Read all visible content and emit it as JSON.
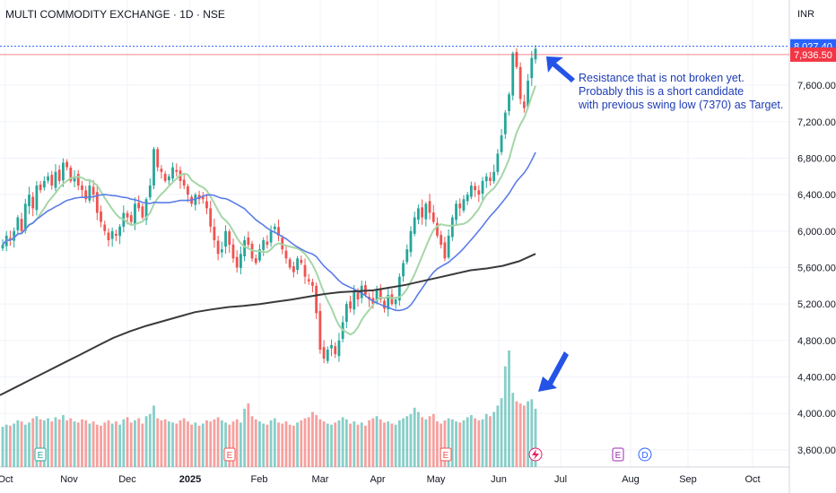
{
  "chart_data": {
    "type": "candlestick",
    "title": "MULTI COMMODITY EXCHANGE · 1D · NSE",
    "currency_label": "INR",
    "y_ticks": [
      3600,
      4000,
      4400,
      4800,
      5200,
      5600,
      6000,
      6400,
      6800,
      7200,
      7600
    ],
    "y_tick_labels": [
      "3,600.00",
      "4,000.00",
      "4,400.00",
      "4,800.00",
      "5,200.00",
      "5,600.00",
      "6,000.00",
      "6,400.00",
      "6,800.00",
      "7,200.00",
      "7,600.00"
    ],
    "ylim": [
      3520,
      8260
    ],
    "x_tick_labels": [
      "Oct",
      "Nov",
      "Dec",
      "2025",
      "Feb",
      "Mar",
      "Apr",
      "May",
      "Jun",
      "Jul",
      "Aug",
      "Sep",
      "Oct"
    ],
    "price_labels": [
      {
        "value": 8027.4,
        "text": "8,027.40",
        "color": "#2962ff"
      },
      {
        "value": 7936.5,
        "text": "7,936.50",
        "color": "#f23645"
      }
    ],
    "candles_close": [
      5850,
      5950,
      5900,
      6000,
      6150,
      6000,
      6300,
      6400,
      6250,
      6500,
      6450,
      6550,
      6600,
      6500,
      6650,
      6550,
      6750,
      6700,
      6550,
      6600,
      6500,
      6450,
      6350,
      6500,
      6400,
      6200,
      6100,
      6000,
      5900,
      6000,
      5950,
      6050,
      6200,
      6150,
      6100,
      6300,
      6250,
      6150,
      6350,
      6500,
      6900,
      6700,
      6650,
      6550,
      6600,
      6700,
      6650,
      6550,
      6500,
      6400,
      6300,
      6400,
      6350,
      6350,
      6250,
      6050,
      5900,
      5750,
      5800,
      6000,
      5850,
      5700,
      5600,
      5750,
      5900,
      5850,
      5700,
      5650,
      5800,
      5900,
      5850,
      6000,
      6050,
      5950,
      5800,
      5700,
      5600,
      5550,
      5700,
      5650,
      5500,
      5450,
      5400,
      5100,
      4700,
      4600,
      4700,
      4750,
      4650,
      4800,
      5000,
      5200,
      5150,
      5350,
      5250,
      5400,
      5300,
      5250,
      5200,
      5350,
      5250,
      5150,
      5300,
      5200,
      5250,
      5500,
      5650,
      5800,
      6000,
      6150,
      6250,
      6150,
      6300,
      6200,
      6100,
      5950,
      5850,
      5700,
      5950,
      6150,
      6300,
      6250,
      6350,
      6400,
      6500,
      6450,
      6400,
      6550,
      6600,
      6550,
      6650,
      6850,
      7050,
      7300,
      7500,
      7950,
      7800,
      7450,
      7350,
      7650,
      7900,
      8000
    ],
    "volume": [
      38,
      40,
      39,
      41,
      44,
      43,
      40,
      42,
      46,
      48,
      45,
      44,
      46,
      43,
      47,
      45,
      49,
      44,
      46,
      43,
      42,
      45,
      44,
      41,
      43,
      40,
      39,
      42,
      44,
      41,
      43,
      40,
      45,
      47,
      42,
      44,
      46,
      41,
      48,
      50,
      58,
      46,
      44,
      45,
      43,
      42,
      41,
      44,
      46,
      43,
      40,
      42,
      39,
      41,
      44,
      43,
      45,
      47,
      44,
      42,
      40,
      43,
      45,
      42,
      55,
      60,
      48,
      45,
      43,
      41,
      40,
      44,
      46,
      42,
      41,
      43,
      40,
      39,
      42,
      44,
      46,
      47,
      52,
      49,
      45,
      43,
      41,
      40,
      42,
      44,
      47,
      45,
      41,
      43,
      40,
      42,
      39,
      44,
      46,
      48,
      45,
      42,
      43,
      41,
      40,
      44,
      46,
      48,
      50,
      56,
      52,
      47,
      45,
      48,
      50,
      43,
      41,
      44,
      46,
      45,
      43,
      42,
      44,
      47,
      49,
      46,
      44,
      45,
      50,
      48,
      52,
      58,
      65,
      95,
      110,
      70,
      62,
      60,
      58,
      62,
      64,
      55
    ],
    "series": [
      {
        "name": "",
        "color": "#a5d6a7",
        "period": 20
      },
      {
        "name": "",
        "color": "#5b7ce8",
        "period": 50
      },
      {
        "name": "",
        "color": "#3a3a3a",
        "period": 200
      }
    ],
    "ma200": [
      4200,
      4290,
      4380,
      4470,
      4560,
      4650,
      4740,
      4830,
      4900,
      4960,
      5010,
      5060,
      5110,
      5140,
      5165,
      5180,
      5200,
      5225,
      5250,
      5280,
      5310,
      5330,
      5340,
      5350,
      5380,
      5410,
      5450,
      5490,
      5530,
      5570,
      5590,
      5620,
      5670,
      5750
    ],
    "volume_colors": {
      "up": "#26a69a",
      "down": "#ef5350"
    },
    "candle_colors": {
      "up": "#26a69a",
      "down": "#ef5350"
    },
    "earnings_markers": [
      "E",
      "E",
      "E",
      "E",
      "E"
    ],
    "event_markers": [
      "D"
    ],
    "annotation": {
      "lines": [
        "Resistance that is not broken yet.",
        "Probably this is a short candidate",
        "with previous swing low (7370) as Target."
      ],
      "color": "#1e3cb4"
    }
  }
}
